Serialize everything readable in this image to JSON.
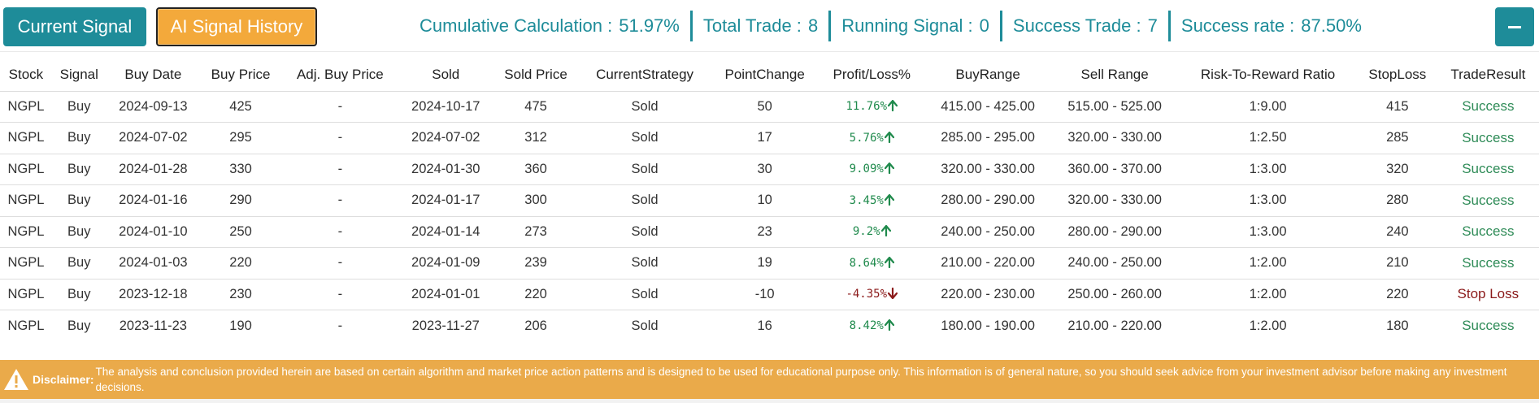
{
  "toolbar": {
    "current_signal_label": "Current Signal",
    "history_label": "AI Signal History"
  },
  "stats": [
    {
      "label": "Cumulative Calculation :",
      "value": "51.97%"
    },
    {
      "label": "Total Trade :",
      "value": "8"
    },
    {
      "label": "Running Signal :",
      "value": "0"
    },
    {
      "label": "Success Trade :",
      "value": "7"
    },
    {
      "label": "Success rate :",
      "value": "87.50%"
    }
  ],
  "table": {
    "headers": [
      "Stock",
      "Signal",
      "Buy Date",
      "Buy Price",
      "Adj. Buy Price",
      "Sold",
      "Sold Price",
      "CurrentStrategy",
      "PointChange",
      "Profit/Loss%",
      "BuyRange",
      "Sell Range",
      "Risk-To-Reward Ratio",
      "StopLoss",
      "TradeResult"
    ],
    "rows": [
      [
        "NGPL",
        "Buy",
        "2024-09-13",
        "425",
        "-",
        "2024-10-17",
        "475",
        "Sold",
        "50",
        "11.76%",
        "415.00 - 425.00",
        "515.00 - 525.00",
        "1:9.00",
        "415",
        "Success"
      ],
      [
        "NGPL",
        "Buy",
        "2024-07-02",
        "295",
        "-",
        "2024-07-02",
        "312",
        "Sold",
        "17",
        "5.76%",
        "285.00 - 295.00",
        "320.00 - 330.00",
        "1:2.50",
        "285",
        "Success"
      ],
      [
        "NGPL",
        "Buy",
        "2024-01-28",
        "330",
        "-",
        "2024-01-30",
        "360",
        "Sold",
        "30",
        "9.09%",
        "320.00 - 330.00",
        "360.00 - 370.00",
        "1:3.00",
        "320",
        "Success"
      ],
      [
        "NGPL",
        "Buy",
        "2024-01-16",
        "290",
        "-",
        "2024-01-17",
        "300",
        "Sold",
        "10",
        "3.45%",
        "280.00 - 290.00",
        "320.00 - 330.00",
        "1:3.00",
        "280",
        "Success"
      ],
      [
        "NGPL",
        "Buy",
        "2024-01-10",
        "250",
        "-",
        "2024-01-14",
        "273",
        "Sold",
        "23",
        "9.2%",
        "240.00 - 250.00",
        "280.00 - 290.00",
        "1:3.00",
        "240",
        "Success"
      ],
      [
        "NGPL",
        "Buy",
        "2024-01-03",
        "220",
        "-",
        "2024-01-09",
        "239",
        "Sold",
        "19",
        "8.64%",
        "210.00 - 220.00",
        "240.00 - 250.00",
        "1:2.00",
        "210",
        "Success"
      ],
      [
        "NGPL",
        "Buy",
        "2023-12-18",
        "230",
        "-",
        "2024-01-01",
        "220",
        "Sold",
        "-10",
        "-4.35%",
        "220.00 - 230.00",
        "250.00 - 260.00",
        "1:2.00",
        "220",
        "Stop Loss"
      ],
      [
        "NGPL",
        "Buy",
        "2023-11-23",
        "190",
        "-",
        "2023-11-27",
        "206",
        "Sold",
        "16",
        "8.42%",
        "180.00 - 190.00",
        "210.00 - 220.00",
        "1:2.00",
        "180",
        "Success"
      ]
    ],
    "trend_icons": [
      "arrow-up-icon",
      "arrow-up-icon",
      "arrow-up-icon",
      "arrow-up-icon",
      "arrow-up-icon",
      "arrow-up-icon",
      "arrow-down-icon",
      "arrow-up-icon"
    ]
  },
  "colors": {
    "teal": "#1e8c99",
    "orange": "#f3a93b",
    "profit": "#1f8a4c",
    "loss": "#8b1a1a",
    "disclaimer_bg": "#eaaa4a"
  },
  "disclaimer": {
    "icon": "warning-icon",
    "label": "Disclaimer:",
    "text": "The analysis and conclusion provided herein are based on certain algorithm and market price action patterns and is designed to be used for educational purpose only. This information is of general nature, so you should seek advice from your investment advisor before making any investment decisions."
  }
}
